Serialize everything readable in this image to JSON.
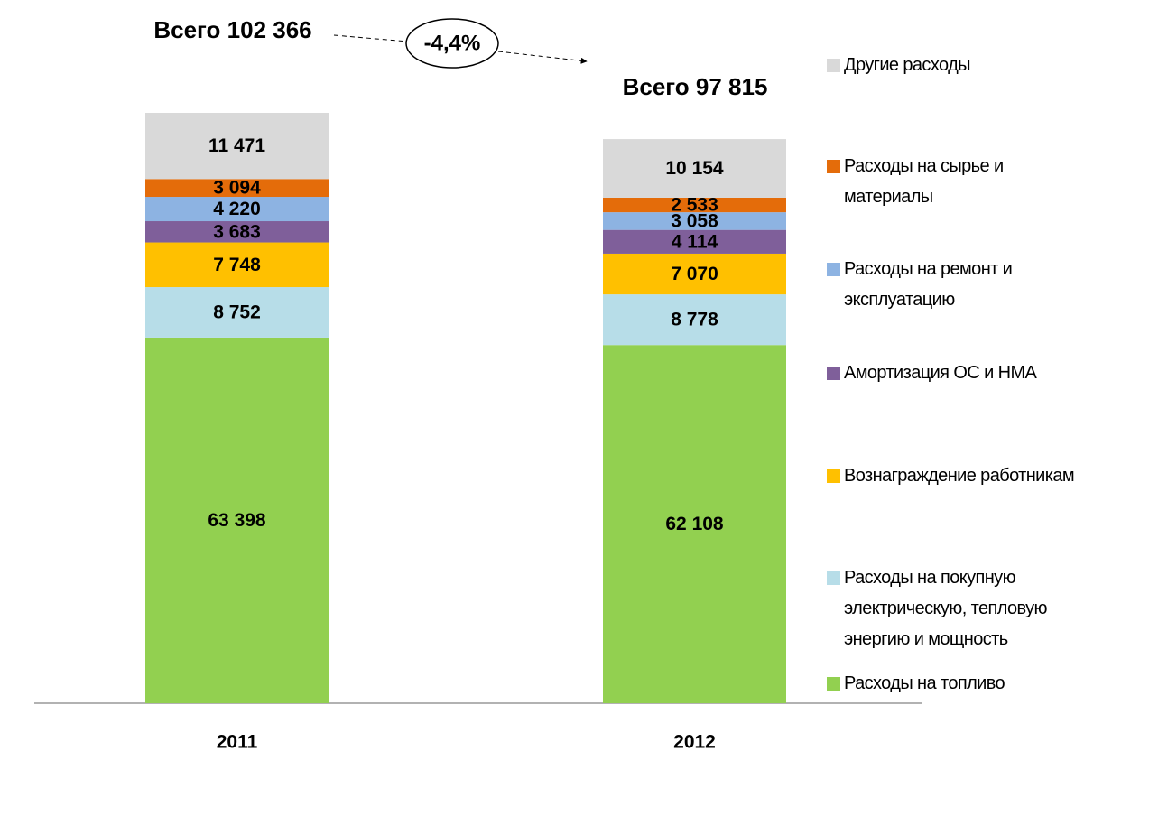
{
  "chart_data": {
    "type": "stacked_bar",
    "categories": [
      "2011",
      "2012"
    ],
    "series": [
      {
        "name": "Расходы на топливо",
        "color": "#92d050",
        "values": [
          63398,
          62108
        ],
        "value_labels": [
          "63 398",
          "62 108"
        ]
      },
      {
        "name": "Расходы на покупную электрическую, тепловую энергию и мощность",
        "color": "#b7dde8",
        "values": [
          8752,
          8778
        ],
        "value_labels": [
          "8 752",
          "8 778"
        ]
      },
      {
        "name": "Вознаграждение работникам",
        "color": "#ffc000",
        "values": [
          7748,
          7070
        ],
        "value_labels": [
          "7 748",
          "7 070"
        ]
      },
      {
        "name": "Амортизация ОС и НМА",
        "color": "#7f5f9a",
        "values": [
          3683,
          4114
        ],
        "value_labels": [
          "3 683",
          "4 114"
        ]
      },
      {
        "name": "Расходы на ремонт и эксплуатацию",
        "color": "#8db3e2",
        "values": [
          4220,
          3058
        ],
        "value_labels": [
          "4 220",
          "3 058"
        ]
      },
      {
        "name": "Расходы на сырье и материалы",
        "color": "#e46c0a",
        "values": [
          3094,
          2533
        ],
        "value_labels": [
          "3 094",
          "2 533"
        ]
      },
      {
        "name": "Другие расходы",
        "color": "#d9d9d9",
        "values": [
          11471,
          10154
        ],
        "value_labels": [
          "11 471",
          "10 154"
        ]
      }
    ],
    "annotations": {
      "totals": [
        "Всего 102 366",
        "Всего 97 815"
      ],
      "change": "-4,4%"
    },
    "legend": "right"
  }
}
